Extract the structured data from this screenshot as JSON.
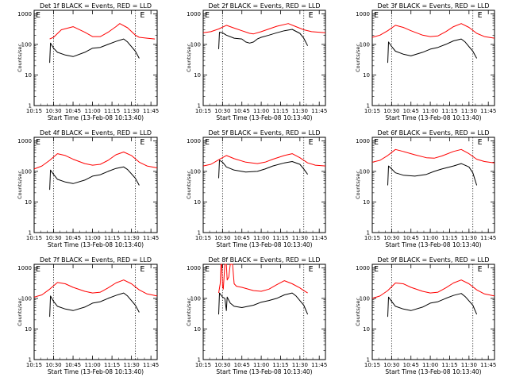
{
  "chart_data": [
    {
      "type": "line",
      "title": "Det 1f BLACK = Events, RED = LLD",
      "xlabel": "Start Time (13-Feb-08 10:13:40)",
      "ylabel": "Counts/sec",
      "x_ticks": [
        "10:15",
        "10:30",
        "10:45",
        "11:00",
        "11:15",
        "11:30",
        "11:45"
      ],
      "y_ticks": [
        "1",
        "10",
        "100",
        "1000"
      ],
      "xlim": [
        10.25,
        11.83
      ],
      "ylim": [
        1,
        1300
      ],
      "yscale": "log",
      "markers": [
        "E",
        "E"
      ],
      "vlines": [
        10.5,
        11.55
      ],
      "data_span": [
        10.45,
        11.6
      ],
      "series": [
        {
          "color": "#ff0000",
          "x": [
            10.45,
            10.5,
            10.6,
            10.75,
            10.9,
            11.0,
            11.1,
            11.2,
            11.3,
            11.35,
            11.45,
            11.55,
            11.6,
            11.7,
            11.8
          ],
          "values": [
            150,
            170,
            300,
            380,
            250,
            180,
            180,
            250,
            380,
            480,
            350,
            200,
            170,
            160,
            150
          ]
        },
        {
          "color": "#000000",
          "x": [
            10.45,
            10.46,
            10.5,
            10.55,
            10.65,
            10.75,
            10.9,
            11.0,
            11.1,
            11.2,
            11.3,
            11.4,
            11.45,
            11.55,
            11.6
          ],
          "values": [
            25,
            110,
            75,
            55,
            45,
            40,
            55,
            75,
            80,
            100,
            125,
            150,
            120,
            60,
            35
          ]
        }
      ]
    },
    {
      "type": "line",
      "title": "Det 2f BLACK = Events, RED = LLD",
      "xlabel": "Start Time (13-Feb-08 10:13:40)",
      "ylabel": "Counts/sec",
      "x_ticks": [
        "10:15",
        "10:30",
        "10:45",
        "11:00",
        "11:15",
        "11:30",
        "11:45"
      ],
      "y_ticks": [
        "1",
        "10",
        "100",
        "1000"
      ],
      "xlim": [
        10.25,
        11.83
      ],
      "ylim": [
        1,
        1300
      ],
      "yscale": "log",
      "markers": [
        "E",
        "E"
      ],
      "vlines": [
        10.5,
        11.55
      ],
      "data_span": [
        10.45,
        11.6
      ],
      "series": [
        {
          "color": "#ff0000",
          "x": [
            10.25,
            10.35,
            10.45,
            10.55,
            10.65,
            10.75,
            10.85,
            10.9,
            11.0,
            11.1,
            11.2,
            11.35,
            11.45,
            11.55,
            11.65,
            11.83
          ],
          "values": [
            240,
            260,
            320,
            420,
            340,
            280,
            230,
            220,
            260,
            320,
            390,
            480,
            380,
            300,
            260,
            240
          ]
        },
        {
          "color": "#000000",
          "x": [
            10.45,
            10.46,
            10.5,
            10.55,
            10.65,
            10.75,
            10.8,
            10.85,
            10.9,
            10.95,
            11.0,
            11.1,
            11.2,
            11.3,
            11.4,
            11.5,
            11.55,
            11.6
          ],
          "values": [
            70,
            250,
            240,
            200,
            160,
            150,
            120,
            110,
            120,
            150,
            170,
            200,
            240,
            280,
            310,
            230,
            160,
            90
          ]
        }
      ]
    },
    {
      "type": "line",
      "title": "Det 3f BLACK = Events, RED = LLD",
      "xlabel": "Start Time (13-Feb-08 10:13:40)",
      "ylabel": "Counts/sec",
      "x_ticks": [
        "10:15",
        "10:30",
        "10:45",
        "11:00",
        "11:15",
        "11:30",
        "11:45"
      ],
      "y_ticks": [
        "1",
        "10",
        "100",
        "1000"
      ],
      "xlim": [
        10.25,
        11.83
      ],
      "ylim": [
        1,
        1300
      ],
      "yscale": "log",
      "markers": [
        "E",
        "E"
      ],
      "vlines": [
        10.5,
        11.55
      ],
      "data_span": [
        10.45,
        11.6
      ],
      "series": [
        {
          "color": "#ff0000",
          "x": [
            10.25,
            10.35,
            10.45,
            10.55,
            10.65,
            10.75,
            10.9,
            11.0,
            11.1,
            11.2,
            11.3,
            11.4,
            11.5,
            11.6,
            11.7,
            11.83
          ],
          "values": [
            170,
            200,
            280,
            420,
            360,
            280,
            200,
            180,
            190,
            260,
            380,
            480,
            360,
            230,
            180,
            160
          ]
        },
        {
          "color": "#000000",
          "x": [
            10.45,
            10.46,
            10.5,
            10.55,
            10.65,
            10.75,
            10.9,
            11.0,
            11.1,
            11.2,
            11.3,
            11.4,
            11.45,
            11.55,
            11.6
          ],
          "values": [
            25,
            120,
            85,
            60,
            48,
            42,
            55,
            70,
            80,
            100,
            130,
            150,
            120,
            60,
            35
          ]
        }
      ]
    },
    {
      "type": "line",
      "title": "Det 4f BLACK = Events, RED = LLD",
      "xlabel": "Start Time (13-Feb-08 10:13:40)",
      "ylabel": "Counts/sec",
      "x_ticks": [
        "10:15",
        "10:30",
        "10:45",
        "11:00",
        "11:15",
        "11:30",
        "11:45"
      ],
      "y_ticks": [
        "1",
        "10",
        "100",
        "1000"
      ],
      "xlim": [
        10.25,
        11.83
      ],
      "ylim": [
        1,
        1300
      ],
      "yscale": "log",
      "markers": [
        "E",
        "E"
      ],
      "vlines": [
        10.5,
        11.55
      ],
      "data_span": [
        10.45,
        11.6
      ],
      "series": [
        {
          "color": "#ff0000",
          "x": [
            10.25,
            10.35,
            10.45,
            10.55,
            10.65,
            10.75,
            10.9,
            11.0,
            11.1,
            11.2,
            11.3,
            11.4,
            11.5,
            11.6,
            11.7,
            11.83
          ],
          "values": [
            120,
            150,
            230,
            380,
            330,
            250,
            180,
            160,
            170,
            230,
            350,
            430,
            330,
            200,
            150,
            130
          ]
        },
        {
          "color": "#000000",
          "x": [
            10.45,
            10.46,
            10.5,
            10.55,
            10.65,
            10.75,
            10.9,
            11.0,
            11.1,
            11.2,
            11.3,
            11.4,
            11.45,
            11.55,
            11.6
          ],
          "values": [
            25,
            110,
            80,
            55,
            45,
            40,
            52,
            70,
            78,
            100,
            125,
            140,
            115,
            60,
            35
          ]
        }
      ]
    },
    {
      "type": "line",
      "title": "Det 5f BLACK = Events, RED = LLD",
      "xlabel": "Start Time (13-Feb-08 10:13:40)",
      "ylabel": "Counts/sec",
      "x_ticks": [
        "10:15",
        "10:30",
        "10:45",
        "11:00",
        "11:15",
        "11:30",
        "11:45"
      ],
      "y_ticks": [
        "1",
        "10",
        "100",
        "1000"
      ],
      "xlim": [
        10.25,
        11.83
      ],
      "ylim": [
        1,
        1300
      ],
      "yscale": "log",
      "markers": [
        "E",
        "E"
      ],
      "vlines": [
        10.5,
        11.55
      ],
      "data_span": [
        10.45,
        11.6
      ],
      "series": [
        {
          "color": "#ff0000",
          "x": [
            10.25,
            10.35,
            10.45,
            10.55,
            10.65,
            10.8,
            10.95,
            11.05,
            11.15,
            11.3,
            11.4,
            11.5,
            11.6,
            11.7,
            11.83
          ],
          "values": [
            150,
            170,
            240,
            330,
            260,
            200,
            180,
            200,
            250,
            330,
            380,
            280,
            190,
            160,
            150
          ]
        },
        {
          "color": "#000000",
          "x": [
            10.45,
            10.46,
            10.5,
            10.55,
            10.65,
            10.8,
            10.95,
            11.05,
            11.15,
            11.3,
            11.4,
            11.5,
            11.55,
            11.6
          ],
          "values": [
            60,
            230,
            200,
            140,
            110,
            95,
            100,
            120,
            150,
            190,
            210,
            170,
            120,
            80
          ]
        }
      ]
    },
    {
      "type": "line",
      "title": "Det 6f BLACK = Events, RED = LLD",
      "xlabel": "Start Time (13-Feb-08 10:13:40)",
      "ylabel": "Counts/sec",
      "x_ticks": [
        "10:15",
        "10:30",
        "10:45",
        "11:00",
        "11:15",
        "11:30",
        "11:45"
      ],
      "y_ticks": [
        "1",
        "10",
        "100",
        "1000"
      ],
      "xlim": [
        10.25,
        11.83
      ],
      "ylim": [
        1,
        1300
      ],
      "yscale": "log",
      "markers": [
        "E",
        "E"
      ],
      "vlines": [
        10.5,
        11.55
      ],
      "data_span": [
        10.45,
        11.6
      ],
      "series": [
        {
          "color": "#ff0000",
          "x": [
            10.25,
            10.35,
            10.45,
            10.55,
            10.65,
            10.8,
            10.95,
            11.05,
            11.15,
            11.3,
            11.4,
            11.5,
            11.6,
            11.7,
            11.83
          ],
          "values": [
            200,
            230,
            330,
            520,
            450,
            350,
            280,
            270,
            320,
            450,
            520,
            380,
            250,
            210,
            190
          ]
        },
        {
          "color": "#000000",
          "x": [
            10.45,
            10.46,
            10.5,
            10.55,
            10.65,
            10.8,
            10.95,
            11.05,
            11.15,
            11.3,
            11.4,
            11.5,
            11.55,
            11.6
          ],
          "values": [
            35,
            150,
            120,
            90,
            75,
            70,
            80,
            100,
            120,
            150,
            180,
            140,
            90,
            35
          ]
        }
      ]
    },
    {
      "type": "line",
      "title": "Det 7f BLACK = Events, RED = LLD",
      "xlabel": "Start Time (13-Feb-08 10:13:40)",
      "ylabel": "Counts/sec",
      "x_ticks": [
        "10:15",
        "10:30",
        "10:45",
        "11:00",
        "11:15",
        "11:30",
        "11:45"
      ],
      "y_ticks": [
        "1",
        "10",
        "100",
        "1000"
      ],
      "xlim": [
        10.25,
        11.83
      ],
      "ylim": [
        1,
        1300
      ],
      "yscale": "log",
      "markers": [
        "E",
        "E"
      ],
      "vlines": [
        10.5,
        11.55
      ],
      "data_span": [
        10.45,
        11.6
      ],
      "series": [
        {
          "color": "#ff0000",
          "x": [
            10.25,
            10.35,
            10.45,
            10.55,
            10.65,
            10.75,
            10.9,
            11.0,
            11.1,
            11.2,
            11.3,
            11.4,
            11.5,
            11.6,
            11.7,
            11.83
          ],
          "values": [
            110,
            130,
            200,
            330,
            300,
            230,
            170,
            150,
            160,
            220,
            320,
            400,
            300,
            190,
            140,
            120
          ]
        },
        {
          "color": "#000000",
          "x": [
            10.45,
            10.46,
            10.5,
            10.55,
            10.65,
            10.75,
            10.9,
            11.0,
            11.1,
            11.2,
            11.3,
            11.4,
            11.45,
            11.55,
            11.6
          ],
          "values": [
            25,
            120,
            80,
            55,
            45,
            40,
            52,
            70,
            78,
            100,
            125,
            150,
            120,
            60,
            35
          ]
        }
      ]
    },
    {
      "type": "line",
      "title": "Det 8f BLACK = Events, RED = LLD",
      "xlabel": "Start Time (13-Feb-08 10:13:40)",
      "ylabel": "Counts/sec",
      "x_ticks": [
        "10:15",
        "10:30",
        "10:45",
        "11:00",
        "11:15",
        "11:30",
        "11:45"
      ],
      "y_ticks": [
        "1",
        "10",
        "100",
        "1000"
      ],
      "xlim": [
        10.25,
        11.83
      ],
      "ylim": [
        1,
        1300
      ],
      "yscale": "log",
      "markers": [
        "E",
        "E"
      ],
      "vlines": [
        10.5,
        11.55
      ],
      "data_span": [
        10.45,
        11.6
      ],
      "series": [
        {
          "color": "#ff0000",
          "x": [
            10.45,
            10.47,
            10.48,
            10.49,
            10.5,
            10.51,
            10.53,
            10.55,
            10.56,
            10.58,
            10.6,
            10.63,
            10.65,
            10.68,
            10.75,
            10.9,
            11.0,
            11.1,
            11.2,
            11.3,
            11.4,
            11.5,
            11.55,
            11.6
          ],
          "values": [
            150,
            300,
            1300,
            1300,
            250,
            200,
            1300,
            1300,
            400,
            500,
            1300,
            1300,
            300,
            250,
            230,
            180,
            170,
            200,
            280,
            380,
            300,
            220,
            180,
            150
          ]
        },
        {
          "color": "#000000",
          "x": [
            10.45,
            10.46,
            10.5,
            10.53,
            10.55,
            10.56,
            10.6,
            10.65,
            10.75,
            10.9,
            11.0,
            11.1,
            11.2,
            11.3,
            11.4,
            11.45,
            11.55,
            11.6
          ],
          "values": [
            30,
            150,
            110,
            100,
            40,
            110,
            70,
            55,
            50,
            60,
            75,
            85,
            100,
            130,
            150,
            120,
            60,
            30
          ]
        }
      ]
    },
    {
      "type": "line",
      "title": "Det 9f BLACK = Events, RED = LLD",
      "xlabel": "Start Time (13-Feb-08 10:13:40)",
      "ylabel": "Counts/sec",
      "x_ticks": [
        "10:15",
        "10:30",
        "10:45",
        "11:00",
        "11:15",
        "11:30",
        "11:45"
      ],
      "y_ticks": [
        "1",
        "10",
        "100",
        "1000"
      ],
      "xlim": [
        10.25,
        11.83
      ],
      "ylim": [
        1,
        1300
      ],
      "yscale": "log",
      "markers": [
        "E",
        "E"
      ],
      "vlines": [
        10.5,
        11.55
      ],
      "data_span": [
        10.45,
        11.6
      ],
      "series": [
        {
          "color": "#ff0000",
          "x": [
            10.25,
            10.35,
            10.45,
            10.55,
            10.65,
            10.75,
            10.9,
            11.0,
            11.1,
            11.2,
            11.3,
            11.4,
            11.5,
            11.6,
            11.7,
            11.83
          ],
          "values": [
            100,
            120,
            180,
            320,
            300,
            230,
            170,
            150,
            160,
            220,
            320,
            400,
            300,
            190,
            140,
            120
          ]
        },
        {
          "color": "#000000",
          "x": [
            10.45,
            10.46,
            10.5,
            10.55,
            10.65,
            10.75,
            10.9,
            11.0,
            11.1,
            11.2,
            11.3,
            11.4,
            11.45,
            11.55,
            11.6
          ],
          "values": [
            25,
            110,
            80,
            55,
            45,
            40,
            52,
            70,
            78,
            100,
            125,
            145,
            115,
            60,
            30
          ]
        }
      ]
    }
  ]
}
